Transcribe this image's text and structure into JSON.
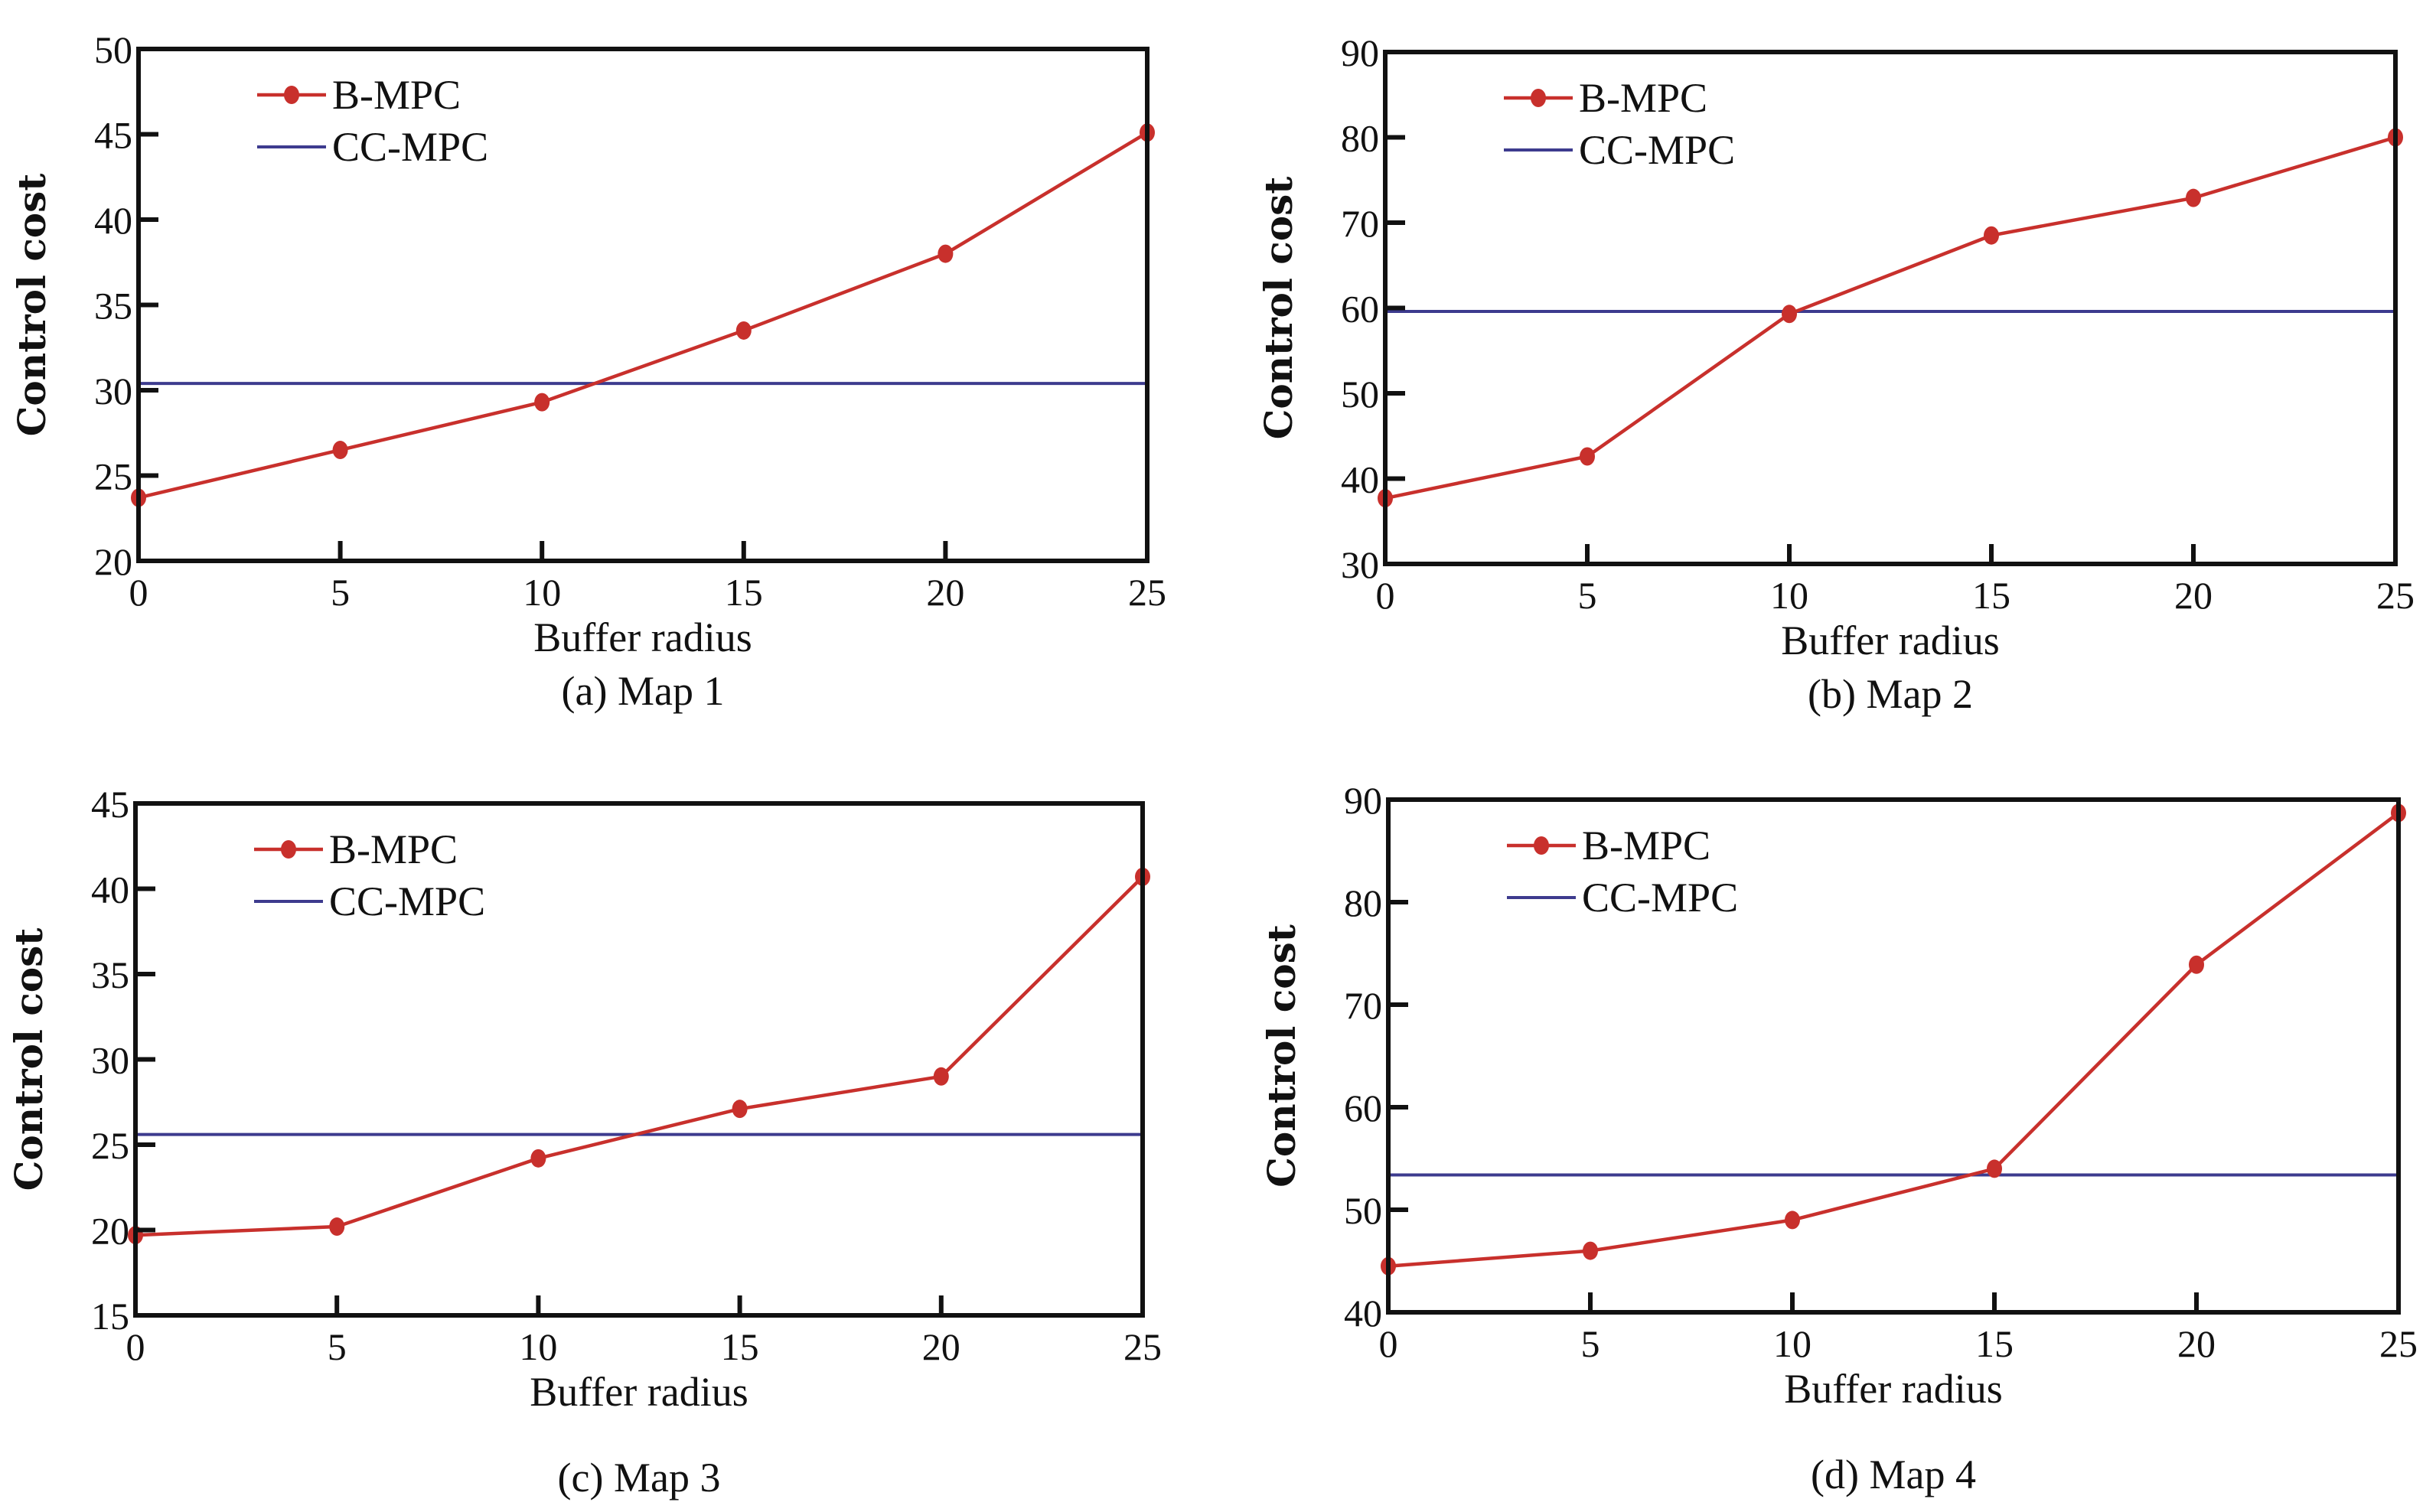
{
  "colors": {
    "bmpc": "#c8302c",
    "ccmpc": "#3d3b8e",
    "axis": "#111111"
  },
  "chart_data": [
    {
      "type": "line",
      "title": "(a) Map 1",
      "xlabel": "Buffer radius",
      "ylabel": "Control cost",
      "x": [
        0,
        5,
        10,
        15,
        20,
        25
      ],
      "xticks": [
        "0",
        "5",
        "10",
        "15",
        "20",
        "25"
      ],
      "xlim": [
        0,
        25
      ],
      "ylim": [
        20,
        50
      ],
      "yticks": [
        "20",
        "25",
        "30",
        "35",
        "40",
        "45",
        "50"
      ],
      "legend_position": "top-left",
      "series": [
        {
          "name": "B-MPC",
          "values": [
            23.7,
            26.5,
            29.3,
            33.5,
            38.0,
            45.1
          ]
        },
        {
          "name": "CC-MPC",
          "constant": 30.4
        }
      ]
    },
    {
      "type": "line",
      "title": "(b) Map 2",
      "xlabel": "Buffer radius",
      "ylabel": "Control cost",
      "x": [
        0,
        5,
        10,
        15,
        20,
        25
      ],
      "xticks": [
        "0",
        "5",
        "10",
        "15",
        "20",
        "25"
      ],
      "xlim": [
        0,
        25
      ],
      "ylim": [
        30,
        90
      ],
      "yticks": [
        "30",
        "40",
        "50",
        "60",
        "70",
        "80",
        "90"
      ],
      "legend_position": "top-left",
      "series": [
        {
          "name": "B-MPC",
          "values": [
            37.7,
            42.6,
            59.3,
            68.5,
            72.9,
            80.0
          ]
        },
        {
          "name": "CC-MPC",
          "constant": 59.6
        }
      ]
    },
    {
      "type": "line",
      "title": "(c) Map 3",
      "xlabel": "Buffer radius",
      "ylabel": "Control cost",
      "x": [
        0,
        5,
        10,
        15,
        20,
        25
      ],
      "xticks": [
        "0",
        "5",
        "10",
        "15",
        "20",
        "25"
      ],
      "xlim": [
        0,
        25
      ],
      "ylim": [
        15,
        45
      ],
      "yticks": [
        "15",
        "20",
        "25",
        "30",
        "35",
        "40",
        "45"
      ],
      "legend_position": "top-left",
      "series": [
        {
          "name": "B-MPC",
          "values": [
            19.7,
            20.2,
            24.2,
            27.1,
            29.0,
            40.7
          ]
        },
        {
          "name": "CC-MPC",
          "constant": 25.6
        }
      ]
    },
    {
      "type": "line",
      "title": "(d) Map 4",
      "xlabel": "Buffer radius",
      "ylabel": "Control cost",
      "x": [
        0,
        5,
        10,
        15,
        20,
        25
      ],
      "xticks": [
        "0",
        "5",
        "10",
        "15",
        "20",
        "25"
      ],
      "xlim": [
        0,
        25
      ],
      "ylim": [
        40,
        90
      ],
      "yticks": [
        "40",
        "50",
        "60",
        "70",
        "80",
        "90"
      ],
      "legend_position": "top-left",
      "series": [
        {
          "name": "B-MPC",
          "values": [
            44.5,
            46.0,
            49.0,
            54.0,
            73.9,
            88.7
          ]
        },
        {
          "name": "CC-MPC",
          "constant": 53.4
        }
      ]
    }
  ]
}
